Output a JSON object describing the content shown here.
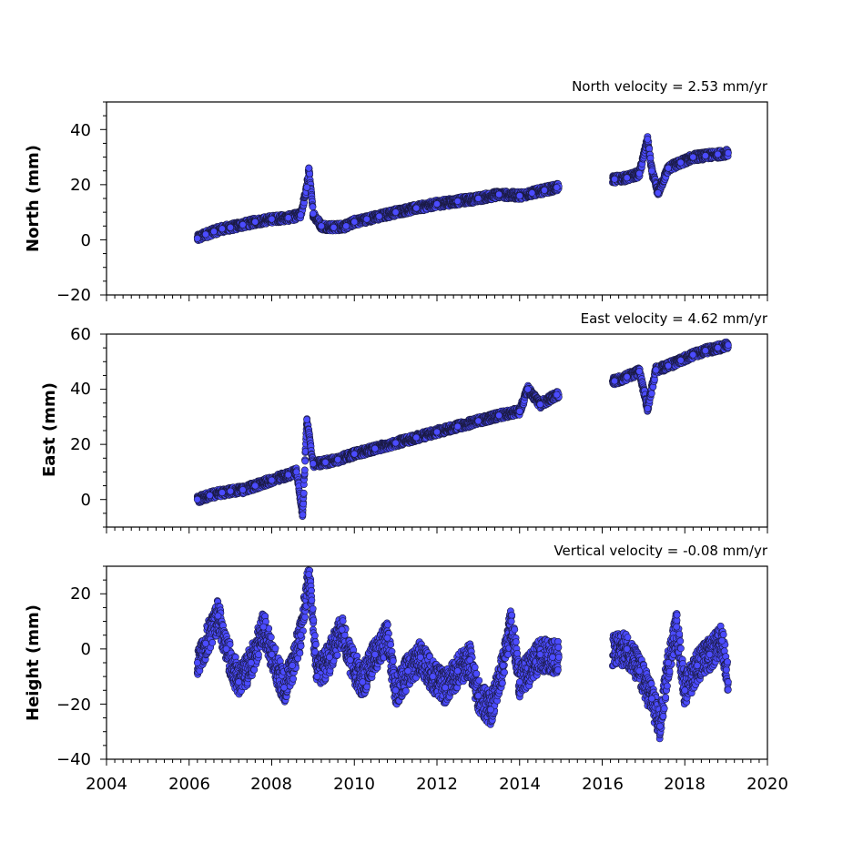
{
  "chart_data": [
    {
      "type": "scatter",
      "title": "North velocity = 2.53 mm/yr",
      "ylabel": "North (mm)",
      "xlim": [
        2004,
        2020
      ],
      "ylim": [
        -20,
        50
      ],
      "yticks": [
        -20,
        0,
        20,
        40
      ],
      "yticklabels": [
        "−20",
        "0",
        "20",
        "40"
      ],
      "grid": false,
      "marker_color": "#4b4bff",
      "series": [
        {
          "x": [
            2006.2,
            2006.4,
            2006.6,
            2006.8,
            2007.0,
            2007.3,
            2007.6,
            2008.0,
            2008.4,
            2008.7,
            2008.85,
            2008.9,
            2009.0,
            2009.2,
            2009.5,
            2009.8,
            2010.0,
            2010.3,
            2010.6,
            2011.0,
            2011.5,
            2012.0,
            2012.5,
            2013.0,
            2013.5,
            2014.0,
            2014.3,
            2014.6,
            2014.9,
            2016.3,
            2016.6,
            2016.9,
            2017.1,
            2017.2,
            2017.35,
            2017.6,
            2017.9,
            2018.2,
            2018.5,
            2018.8,
            2019.05
          ],
          "y": [
            0.5,
            2.0,
            3.0,
            4.0,
            4.5,
            5.5,
            6.5,
            7.5,
            8.0,
            9.0,
            19.0,
            26.0,
            9.5,
            5.0,
            4.5,
            5.0,
            6.5,
            7.5,
            8.5,
            10.0,
            11.5,
            13.0,
            14.0,
            15.0,
            16.5,
            16.0,
            17.0,
            18.0,
            19.0,
            22.0,
            22.5,
            24.0,
            36.5,
            25.0,
            17.0,
            26.0,
            28.0,
            30.0,
            30.5,
            31.0,
            31.5
          ]
        }
      ]
    },
    {
      "type": "scatter",
      "title": "East velocity = 4.62 mm/yr",
      "ylabel": "East (mm)",
      "xlim": [
        2004,
        2020
      ],
      "ylim": [
        -10,
        60
      ],
      "yticks": [
        0,
        20,
        40,
        60
      ],
      "yticklabels": [
        "0",
        "20",
        "40",
        "60"
      ],
      "grid": false,
      "marker_color": "#4b4bff",
      "series": [
        {
          "x": [
            2006.2,
            2006.5,
            2006.8,
            2007.0,
            2007.3,
            2007.6,
            2008.0,
            2008.4,
            2008.6,
            2008.75,
            2008.85,
            2009.0,
            2009.3,
            2009.6,
            2010.0,
            2010.5,
            2011.0,
            2011.5,
            2012.0,
            2012.5,
            2013.0,
            2013.5,
            2014.0,
            2014.2,
            2014.5,
            2014.9,
            2016.3,
            2016.6,
            2016.9,
            2017.1,
            2017.3,
            2017.6,
            2017.9,
            2018.2,
            2018.5,
            2018.8,
            2019.05
          ],
          "y": [
            0.0,
            1.5,
            2.5,
            3.0,
            3.5,
            5.0,
            7.0,
            9.0,
            10.0,
            -5.5,
            29.0,
            13.0,
            13.5,
            14.5,
            16.5,
            18.5,
            20.5,
            22.5,
            24.5,
            26.5,
            28.5,
            30.5,
            32.0,
            40.0,
            34.5,
            38.0,
            43.0,
            44.5,
            46.5,
            33.0,
            47.0,
            48.5,
            50.5,
            52.5,
            54.0,
            55.0,
            56.0
          ]
        }
      ]
    },
    {
      "type": "scatter",
      "title": "Vertical velocity = -0.08 mm/yr",
      "ylabel": "Height (mm)",
      "xlabel": "",
      "xlim": [
        2004,
        2020
      ],
      "ylim": [
        -40,
        30
      ],
      "yticks": [
        -40,
        -20,
        0,
        20
      ],
      "yticklabels": [
        "−40",
        "−20",
        "0",
        "20"
      ],
      "xticks": [
        2004,
        2006,
        2008,
        2010,
        2012,
        2014,
        2016,
        2018,
        2020
      ],
      "grid": false,
      "marker_color": "#4b4bff",
      "series": [
        {
          "x": [
            2006.2,
            2006.4,
            2006.7,
            2006.9,
            2007.2,
            2007.5,
            2007.8,
            2008.0,
            2008.3,
            2008.5,
            2008.7,
            2008.9,
            2009.1,
            2009.4,
            2009.7,
            2009.9,
            2010.2,
            2010.5,
            2010.8,
            2011.0,
            2011.3,
            2011.6,
            2011.9,
            2012.2,
            2012.5,
            2012.8,
            2013.0,
            2013.3,
            2013.6,
            2013.8,
            2014.0,
            2014.5,
            2014.8,
            2016.6,
            2016.9,
            2017.2,
            2017.4,
            2017.6,
            2017.8,
            2018.0,
            2018.3,
            2018.6,
            2018.9,
            2019.05
          ],
          "y": [
            -5,
            2,
            12,
            0,
            -12,
            -5,
            8,
            -2,
            -14,
            -6,
            5,
            27,
            -10,
            -3,
            7,
            -4,
            -12,
            -2,
            4,
            -15,
            -8,
            -3,
            -10,
            -14,
            -8,
            -4,
            -17,
            -22,
            -6,
            10,
            -12,
            -2,
            -3,
            0,
            -8,
            -18,
            -28,
            -5,
            8,
            -15,
            -6,
            -2,
            3,
            -12
          ]
        }
      ]
    }
  ],
  "x_ticklabels": [
    "2004",
    "2006",
    "2008",
    "2010",
    "2012",
    "2014",
    "2016",
    "2018",
    "2020"
  ]
}
